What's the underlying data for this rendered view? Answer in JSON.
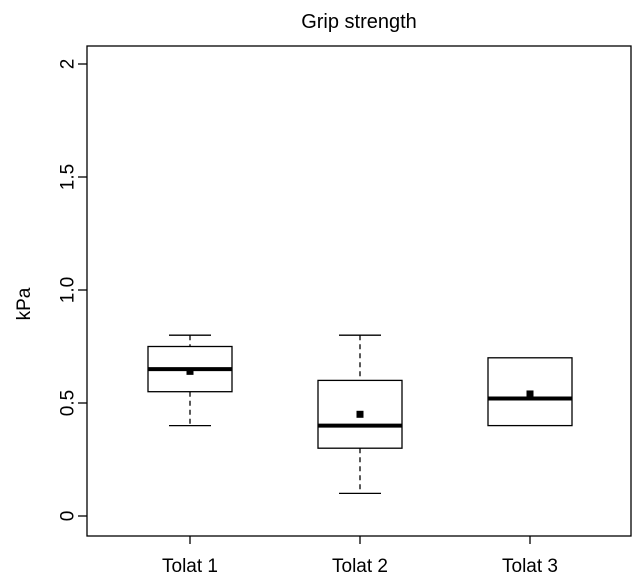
{
  "chart_data": {
    "type": "box",
    "title": "Grip strength",
    "xlabel": "",
    "ylabel": "kPa",
    "ylim": [
      0,
      2
    ],
    "yticks": [
      {
        "value": 0,
        "label": "0"
      },
      {
        "value": 0.5,
        "label": "0.5"
      },
      {
        "value": 1.0,
        "label": "1.0"
      },
      {
        "value": 1.5,
        "label": "1.5"
      },
      {
        "value": 2.0,
        "label": "2"
      }
    ],
    "categories": [
      "Tolat 1",
      "Tolat 2",
      "Tolat 3"
    ],
    "boxes": [
      {
        "category": "Tolat 1",
        "whisker_low": 0.4,
        "q1": 0.55,
        "median": 0.65,
        "q3": 0.75,
        "whisker_high": 0.8,
        "mean": 0.64
      },
      {
        "category": "Tolat 2",
        "whisker_low": 0.1,
        "q1": 0.3,
        "median": 0.4,
        "q3": 0.6,
        "whisker_high": 0.8,
        "mean": 0.45
      },
      {
        "category": "Tolat 3",
        "whisker_low": 0.4,
        "q1": 0.4,
        "median": 0.52,
        "q3": 0.7,
        "whisker_high": 0.7,
        "mean": 0.54
      }
    ],
    "grid": false,
    "legend": "none"
  }
}
